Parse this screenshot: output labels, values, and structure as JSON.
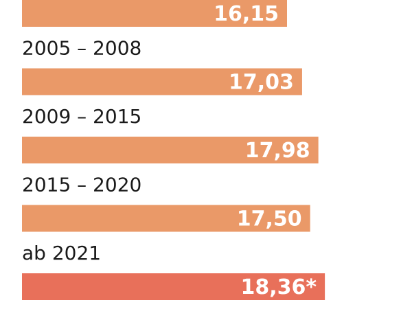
{
  "chart_data": {
    "type": "bar",
    "orientation": "horizontal",
    "categories": [
      "",
      "2005 – 2008",
      "2009 – 2015",
      "2015 – 2020",
      "ab 2021"
    ],
    "values": [
      16.15,
      17.03,
      17.98,
      17.5,
      18.36
    ],
    "value_labels": [
      "16,15",
      "17,03",
      "17,98",
      "17,50",
      "18,36*"
    ],
    "colors": [
      "#ea9968",
      "#ea9968",
      "#ea9968",
      "#ea9968",
      "#e8705a"
    ],
    "title": "",
    "xlabel": "",
    "ylabel": "",
    "grid": false,
    "legend": "none"
  }
}
